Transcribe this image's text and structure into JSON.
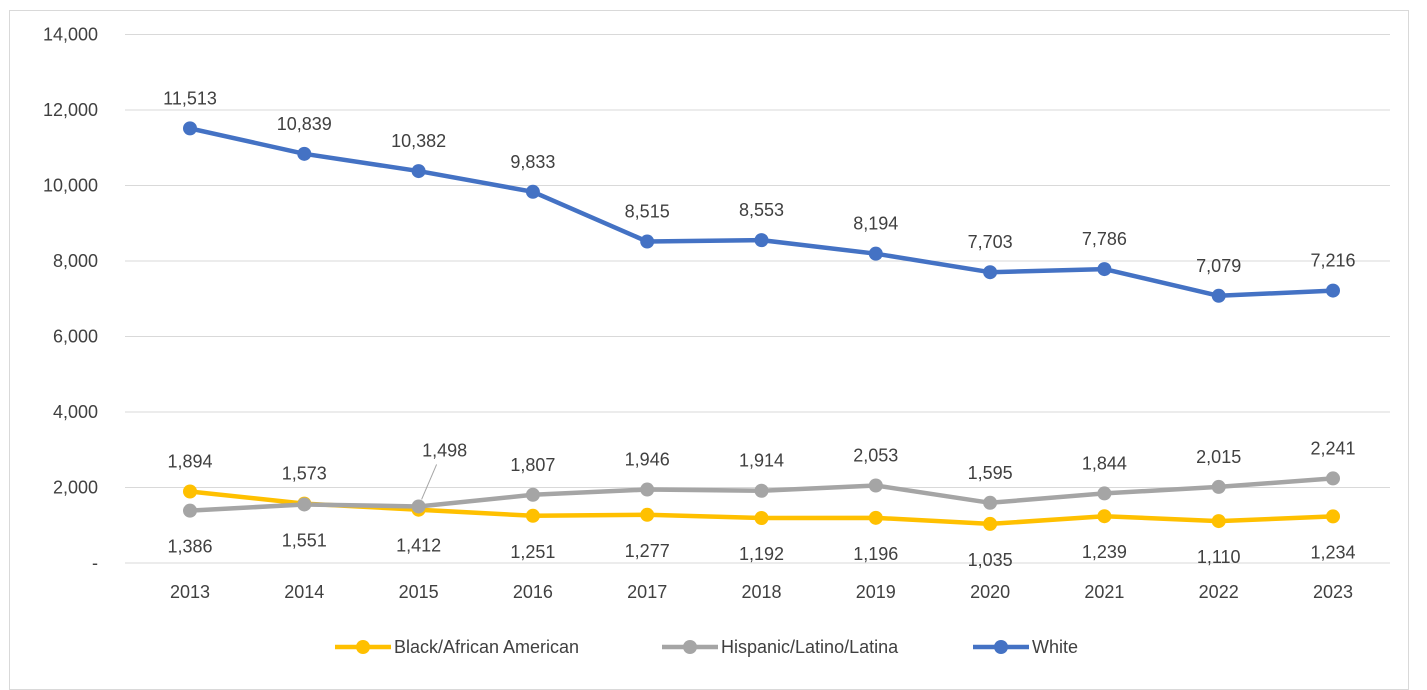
{
  "title": "",
  "chart_data": {
    "type": "line",
    "title": "",
    "xlabel": "",
    "ylabel": "",
    "ylim": [
      0,
      14000
    ],
    "y_ticks": [
      0,
      2000,
      4000,
      6000,
      8000,
      10000,
      12000,
      14000
    ],
    "y_tick_labels": [
      "-",
      "2,000",
      "4,000",
      "6,000",
      "8,000",
      "10,000",
      "12,000",
      "14,000"
    ],
    "grid": true,
    "legend_position": "bottom",
    "categories": [
      "2013",
      "2014",
      "2015",
      "2016",
      "2017",
      "2018",
      "2019",
      "2020",
      "2021",
      "2022",
      "2023"
    ],
    "series": [
      {
        "name": "Black/African American",
        "color": "#FFC000",
        "values": [
          1894,
          1573,
          1412,
          1251,
          1277,
          1192,
          1196,
          1035,
          1239,
          1110,
          1234
        ],
        "labels": [
          "1,894",
          "1,573",
          "1,412",
          "1,251",
          "1,277",
          "1,192",
          "1,196",
          "1,035",
          "1,239",
          "1,110",
          "1,234"
        ]
      },
      {
        "name": "Hispanic/Latino/Latina",
        "color": "#A5A5A5",
        "values": [
          1386,
          1551,
          1498,
          1807,
          1946,
          1914,
          2053,
          1595,
          1844,
          2015,
          2241
        ],
        "labels": [
          "1,386",
          "1,551",
          "1,498",
          "1,807",
          "1,946",
          "1,914",
          "2,053",
          "1,595",
          "1,844",
          "2,015",
          "2,241"
        ]
      },
      {
        "name": "White",
        "color": "#4472C4",
        "values": [
          11513,
          10839,
          10382,
          9833,
          8515,
          8553,
          8194,
          7703,
          7786,
          7079,
          7216
        ],
        "labels": [
          "11,513",
          "10,839",
          "10,382",
          "9,833",
          "8,515",
          "8,553",
          "8,194",
          "7,703",
          "7,786",
          "7,079",
          "7,216"
        ]
      }
    ]
  }
}
